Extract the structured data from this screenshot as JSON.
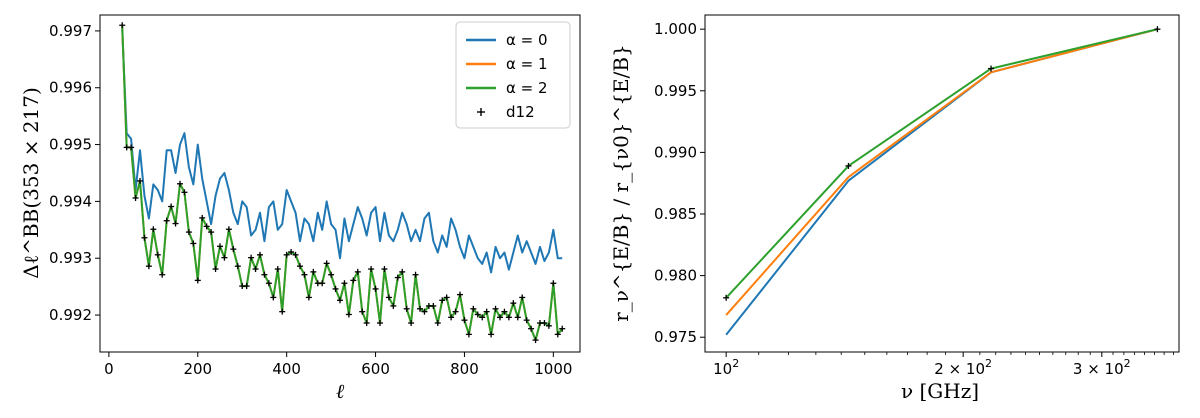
{
  "chart_data": [
    {
      "type": "line",
      "ylabel": "Δℓ^BB(353 × 217)",
      "xlabel": "ℓ",
      "xlim": [
        -20,
        1060
      ],
      "ylim": [
        0.99135,
        0.99728
      ],
      "xticks": [
        0,
        200,
        400,
        600,
        800,
        1000
      ],
      "yticks": [
        0.992,
        0.993,
        0.994,
        0.995,
        0.996,
        0.997
      ],
      "x": [
        30,
        40,
        50,
        60,
        70,
        80,
        90,
        100,
        110,
        120,
        130,
        140,
        150,
        160,
        170,
        180,
        190,
        200,
        210,
        220,
        230,
        240,
        250,
        260,
        270,
        280,
        290,
        300,
        310,
        320,
        330,
        340,
        350,
        360,
        370,
        380,
        390,
        400,
        410,
        420,
        430,
        440,
        450,
        460,
        470,
        480,
        490,
        500,
        510,
        520,
        530,
        540,
        550,
        560,
        570,
        580,
        590,
        600,
        610,
        620,
        630,
        640,
        650,
        660,
        670,
        680,
        690,
        700,
        710,
        720,
        730,
        740,
        750,
        760,
        770,
        780,
        790,
        800,
        810,
        820,
        830,
        840,
        850,
        860,
        870,
        880,
        890,
        900,
        910,
        920,
        930,
        940,
        950,
        960,
        970,
        980,
        990,
        1000,
        1010,
        1020
      ],
      "series": [
        {
          "name": "α = 0",
          "color": "#1f77b4",
          "values": [
            0.99703,
            0.9952,
            0.9951,
            0.9942,
            0.9949,
            0.9941,
            0.9937,
            0.9943,
            0.9942,
            0.994,
            0.9949,
            0.9949,
            0.9945,
            0.995,
            0.9952,
            0.9946,
            0.9943,
            0.995,
            0.9944,
            0.994,
            0.9936,
            0.9941,
            0.9944,
            0.9945,
            0.9942,
            0.9938,
            0.9936,
            0.994,
            0.9939,
            0.9934,
            0.9935,
            0.9938,
            0.9933,
            0.9939,
            0.994,
            0.9935,
            0.9936,
            0.9942,
            0.994,
            0.9938,
            0.9933,
            0.9937,
            0.9936,
            0.9933,
            0.9938,
            0.9935,
            0.994,
            0.9936,
            0.9935,
            0.993,
            0.9937,
            0.9933,
            0.9936,
            0.9939,
            0.9937,
            0.9934,
            0.9938,
            0.9939,
            0.9933,
            0.9938,
            0.9934,
            0.9933,
            0.9935,
            0.9938,
            0.9936,
            0.9933,
            0.9935,
            0.9933,
            0.9937,
            0.9938,
            0.9933,
            0.9931,
            0.9934,
            0.9932,
            0.9937,
            0.9935,
            0.9932,
            0.993,
            0.9934,
            0.9932,
            0.993,
            0.9929,
            0.9931,
            0.99275,
            0.9932,
            0.993,
            0.9931,
            0.9928,
            0.9931,
            0.9934,
            0.9931,
            0.9933,
            0.9931,
            0.9929,
            0.9932,
            0.99295,
            0.9931,
            0.9935,
            0.993,
            0.993
          ]
        },
        {
          "name": "α = 1",
          "color": "#ff7f0e",
          "values": [
            0.99708,
            0.99495,
            0.99495,
            0.99406,
            0.99436,
            0.99336,
            0.99286,
            0.99351,
            0.99306,
            0.99271,
            0.99366,
            0.99391,
            0.99361,
            0.99431,
            0.99416,
            0.99346,
            0.99326,
            0.99261,
            0.99371,
            0.99356,
            0.99346,
            0.99281,
            0.99321,
            0.99301,
            0.99351,
            0.99316,
            0.99286,
            0.99251,
            0.99251,
            0.99301,
            0.99281,
            0.99306,
            0.99271,
            0.99256,
            0.99231,
            0.99281,
            0.99206,
            0.99306,
            0.99311,
            0.99306,
            0.99286,
            0.99271,
            0.99231,
            0.99276,
            0.99256,
            0.99256,
            0.99291,
            0.99271,
            0.99246,
            0.99226,
            0.99256,
            0.99201,
            0.99261,
            0.99276,
            0.99206,
            0.99186,
            0.99281,
            0.99246,
            0.99186,
            0.99281,
            0.99231,
            0.99216,
            0.99266,
            0.99276,
            0.99211,
            0.99186,
            0.99271,
            0.99211,
            0.99206,
            0.99216,
            0.99216,
            0.99186,
            0.99226,
            0.99231,
            0.99196,
            0.99206,
            0.99236,
            0.99191,
            0.99166,
            0.99211,
            0.99201,
            0.99196,
            0.99206,
            0.99166,
            0.99211,
            0.99196,
            0.99206,
            0.99196,
            0.99221,
            0.99196,
            0.99231,
            0.99191,
            0.99176,
            0.99156,
            0.99186,
            0.99186,
            0.99181,
            0.99256,
            0.99166,
            0.99176
          ]
        },
        {
          "name": "α = 2",
          "color": "#2ca02c",
          "values": [
            0.9971,
            0.99495,
            0.99495,
            0.99406,
            0.99436,
            0.99336,
            0.99286,
            0.99351,
            0.99306,
            0.99271,
            0.99366,
            0.99391,
            0.99361,
            0.99431,
            0.99416,
            0.99346,
            0.99326,
            0.99261,
            0.99371,
            0.99356,
            0.99346,
            0.99281,
            0.99321,
            0.99301,
            0.99351,
            0.99316,
            0.99286,
            0.99251,
            0.99251,
            0.99301,
            0.99281,
            0.99306,
            0.99271,
            0.99256,
            0.99231,
            0.99281,
            0.99206,
            0.99306,
            0.99311,
            0.99306,
            0.99286,
            0.99271,
            0.99231,
            0.99276,
            0.99256,
            0.99256,
            0.99291,
            0.99271,
            0.99246,
            0.99226,
            0.99256,
            0.99201,
            0.99261,
            0.99276,
            0.99206,
            0.99186,
            0.99281,
            0.99246,
            0.99186,
            0.99281,
            0.99231,
            0.99216,
            0.99266,
            0.99276,
            0.99211,
            0.99186,
            0.99271,
            0.99211,
            0.99206,
            0.99216,
            0.99216,
            0.99186,
            0.99226,
            0.99231,
            0.99196,
            0.99206,
            0.99236,
            0.99191,
            0.99166,
            0.99211,
            0.99201,
            0.99196,
            0.99206,
            0.99166,
            0.99211,
            0.99196,
            0.99206,
            0.99196,
            0.99221,
            0.99196,
            0.99231,
            0.99191,
            0.99176,
            0.99156,
            0.99186,
            0.99186,
            0.99181,
            0.99256,
            0.99166,
            0.99176
          ]
        },
        {
          "name": "d12",
          "marker": "+",
          "color": "#000000",
          "values": [
            0.9971,
            0.99495,
            0.99495,
            0.99406,
            0.99436,
            0.99336,
            0.99286,
            0.99351,
            0.99306,
            0.99271,
            0.99366,
            0.99391,
            0.99361,
            0.99431,
            0.99416,
            0.99346,
            0.99326,
            0.99261,
            0.99371,
            0.99356,
            0.99346,
            0.99281,
            0.99321,
            0.99301,
            0.99351,
            0.99316,
            0.99286,
            0.99251,
            0.99251,
            0.99301,
            0.99281,
            0.99306,
            0.99271,
            0.99256,
            0.99231,
            0.99281,
            0.99206,
            0.99306,
            0.99311,
            0.99306,
            0.99286,
            0.99271,
            0.99231,
            0.99276,
            0.99256,
            0.99256,
            0.99291,
            0.99271,
            0.99246,
            0.99226,
            0.99256,
            0.99201,
            0.99261,
            0.99276,
            0.99206,
            0.99186,
            0.99281,
            0.99246,
            0.99186,
            0.99281,
            0.99231,
            0.99216,
            0.99266,
            0.99276,
            0.99211,
            0.99186,
            0.99271,
            0.99211,
            0.99206,
            0.99216,
            0.99216,
            0.99186,
            0.99226,
            0.99231,
            0.99196,
            0.99206,
            0.99236,
            0.99191,
            0.99166,
            0.99211,
            0.99201,
            0.99196,
            0.99206,
            0.99166,
            0.99211,
            0.99196,
            0.99206,
            0.99196,
            0.99221,
            0.99196,
            0.99231,
            0.99191,
            0.99176,
            0.99156,
            0.99186,
            0.99186,
            0.99181,
            0.99256,
            0.99166,
            0.99176
          ]
        }
      ],
      "legend": {
        "position": "upper right",
        "entries": [
          {
            "label": "α = 0",
            "color": "#1f77b4",
            "kind": "line"
          },
          {
            "label": "α = 1",
            "color": "#ff7f0e",
            "kind": "line"
          },
          {
            "label": "α = 2",
            "color": "#2ca02c",
            "kind": "line"
          },
          {
            "label": "d12",
            "color": "#000000",
            "kind": "marker"
          }
        ]
      },
      "grid": false
    },
    {
      "type": "line",
      "ylabel": "r_ν^{E/B} / r_{ν0}^{E/B}",
      "xlabel": "ν   [GHz]",
      "xscale": "log",
      "xlim": [
        94,
        376
      ],
      "ylim": [
        0.9738,
        1.00115
      ],
      "xticks": [
        {
          "value": 100,
          "base": "10",
          "exp": "2"
        },
        {
          "value": 200,
          "base": "2 × 10",
          "exp": "2"
        },
        {
          "value": 300,
          "base": "3 × 10",
          "exp": "2"
        }
      ],
      "yticks": [
        "0.975",
        "0.980",
        "0.985",
        "0.990",
        "0.995",
        "1.000"
      ],
      "ytick_values": [
        0.975,
        0.98,
        0.985,
        0.99,
        0.995,
        1.0
      ],
      "x": [
        100,
        143,
        217,
        353
      ],
      "series": [
        {
          "name": "α = 0",
          "color": "#1f77b4",
          "values": [
            0.9752,
            0.9877,
            0.9965,
            1.0
          ]
        },
        {
          "name": "α = 1",
          "color": "#ff7f0e",
          "values": [
            0.9768,
            0.988,
            0.9965,
            1.0
          ]
        },
        {
          "name": "α = 2",
          "color": "#2ca02c",
          "values": [
            0.9782,
            0.9889,
            0.9968,
            1.0
          ]
        },
        {
          "name": "d12",
          "marker": "+",
          "color": "#000000",
          "values": [
            0.9782,
            0.9889,
            0.9968,
            1.0
          ]
        }
      ],
      "grid": false
    }
  ]
}
